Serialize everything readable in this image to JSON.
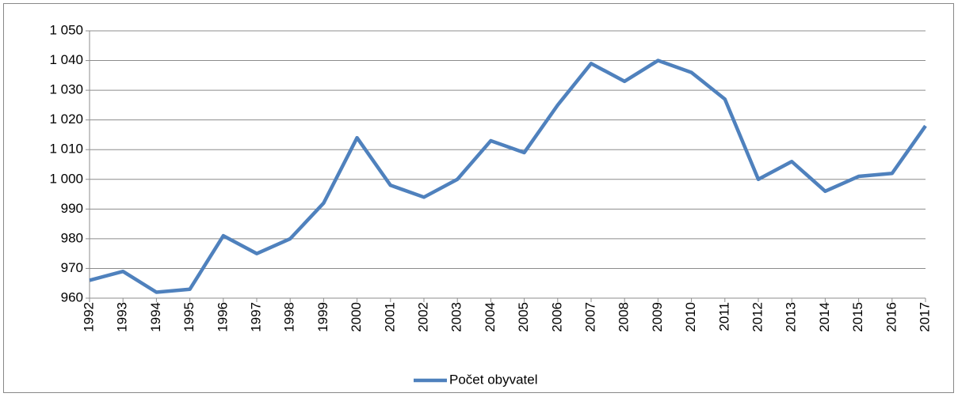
{
  "chart_data": {
    "type": "line",
    "categories": [
      "1992",
      "1993",
      "1994",
      "1995",
      "1996",
      "1997",
      "1998",
      "1999",
      "2000",
      "2001",
      "2002",
      "2003",
      "2004",
      "2005",
      "2006",
      "2007",
      "2008",
      "2009",
      "2010",
      "2011",
      "2012",
      "2013",
      "2014",
      "2015",
      "2016",
      "2017"
    ],
    "series": [
      {
        "name": "Počet obyvatel",
        "color": "#4f81bd",
        "values": [
          966,
          969,
          962,
          963,
          981,
          975,
          980,
          992,
          1014,
          998,
          994,
          1000,
          1013,
          1009,
          1025,
          1039,
          1033,
          1040,
          1036,
          1027,
          1000,
          1006,
          996,
          1001,
          1002,
          1018
        ]
      }
    ],
    "ylim": [
      960,
      1050
    ],
    "yticks": [
      960,
      970,
      980,
      990,
      {
        "value": 1000,
        "label": "1 000"
      },
      {
        "value": 1010,
        "label": "1 010"
      },
      {
        "value": 1020,
        "label": "1 020"
      },
      {
        "value": 1030,
        "label": "1 030"
      },
      {
        "value": 1040,
        "label": "1 040"
      },
      {
        "value": 1050,
        "label": "1 050"
      }
    ],
    "grid": true,
    "legend": "bottom"
  }
}
